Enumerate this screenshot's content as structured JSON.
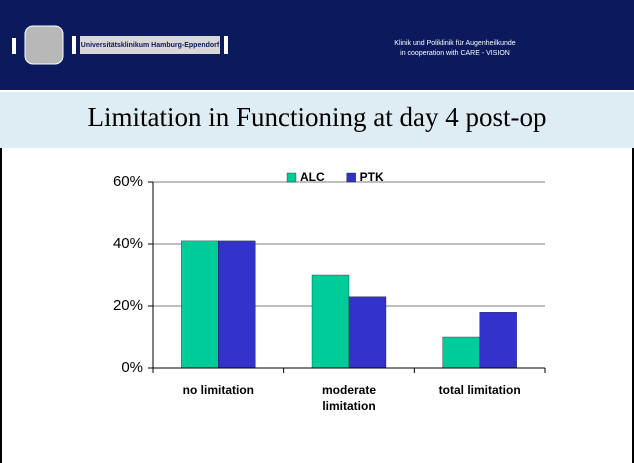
{
  "header": {
    "university": "Universitätsklinikum Hamburg-Eppendorf",
    "clinic": "Klinik und Poliklinik für Augenheilkunde",
    "cooperation": "in cooperation with CARE - VISION"
  },
  "chart_data": {
    "type": "bar",
    "title": "Limitation in Functioning at day 4 post-op",
    "categories": [
      "no limitation",
      "moderate limitation",
      "total limitation"
    ],
    "series": [
      {
        "name": "ALC",
        "color": "#00cc99",
        "values": [
          41,
          30,
          10
        ]
      },
      {
        "name": "PTK",
        "color": "#3333cc",
        "values": [
          41,
          23,
          18
        ]
      }
    ],
    "ylim": [
      0,
      60
    ],
    "yticks": [
      {
        "value": 0,
        "label": "0%"
      },
      {
        "value": 20,
        "label": "20%"
      },
      {
        "value": 40,
        "label": "40%"
      },
      {
        "value": 60,
        "label": "60%"
      }
    ],
    "grid": true,
    "legend": "top"
  }
}
